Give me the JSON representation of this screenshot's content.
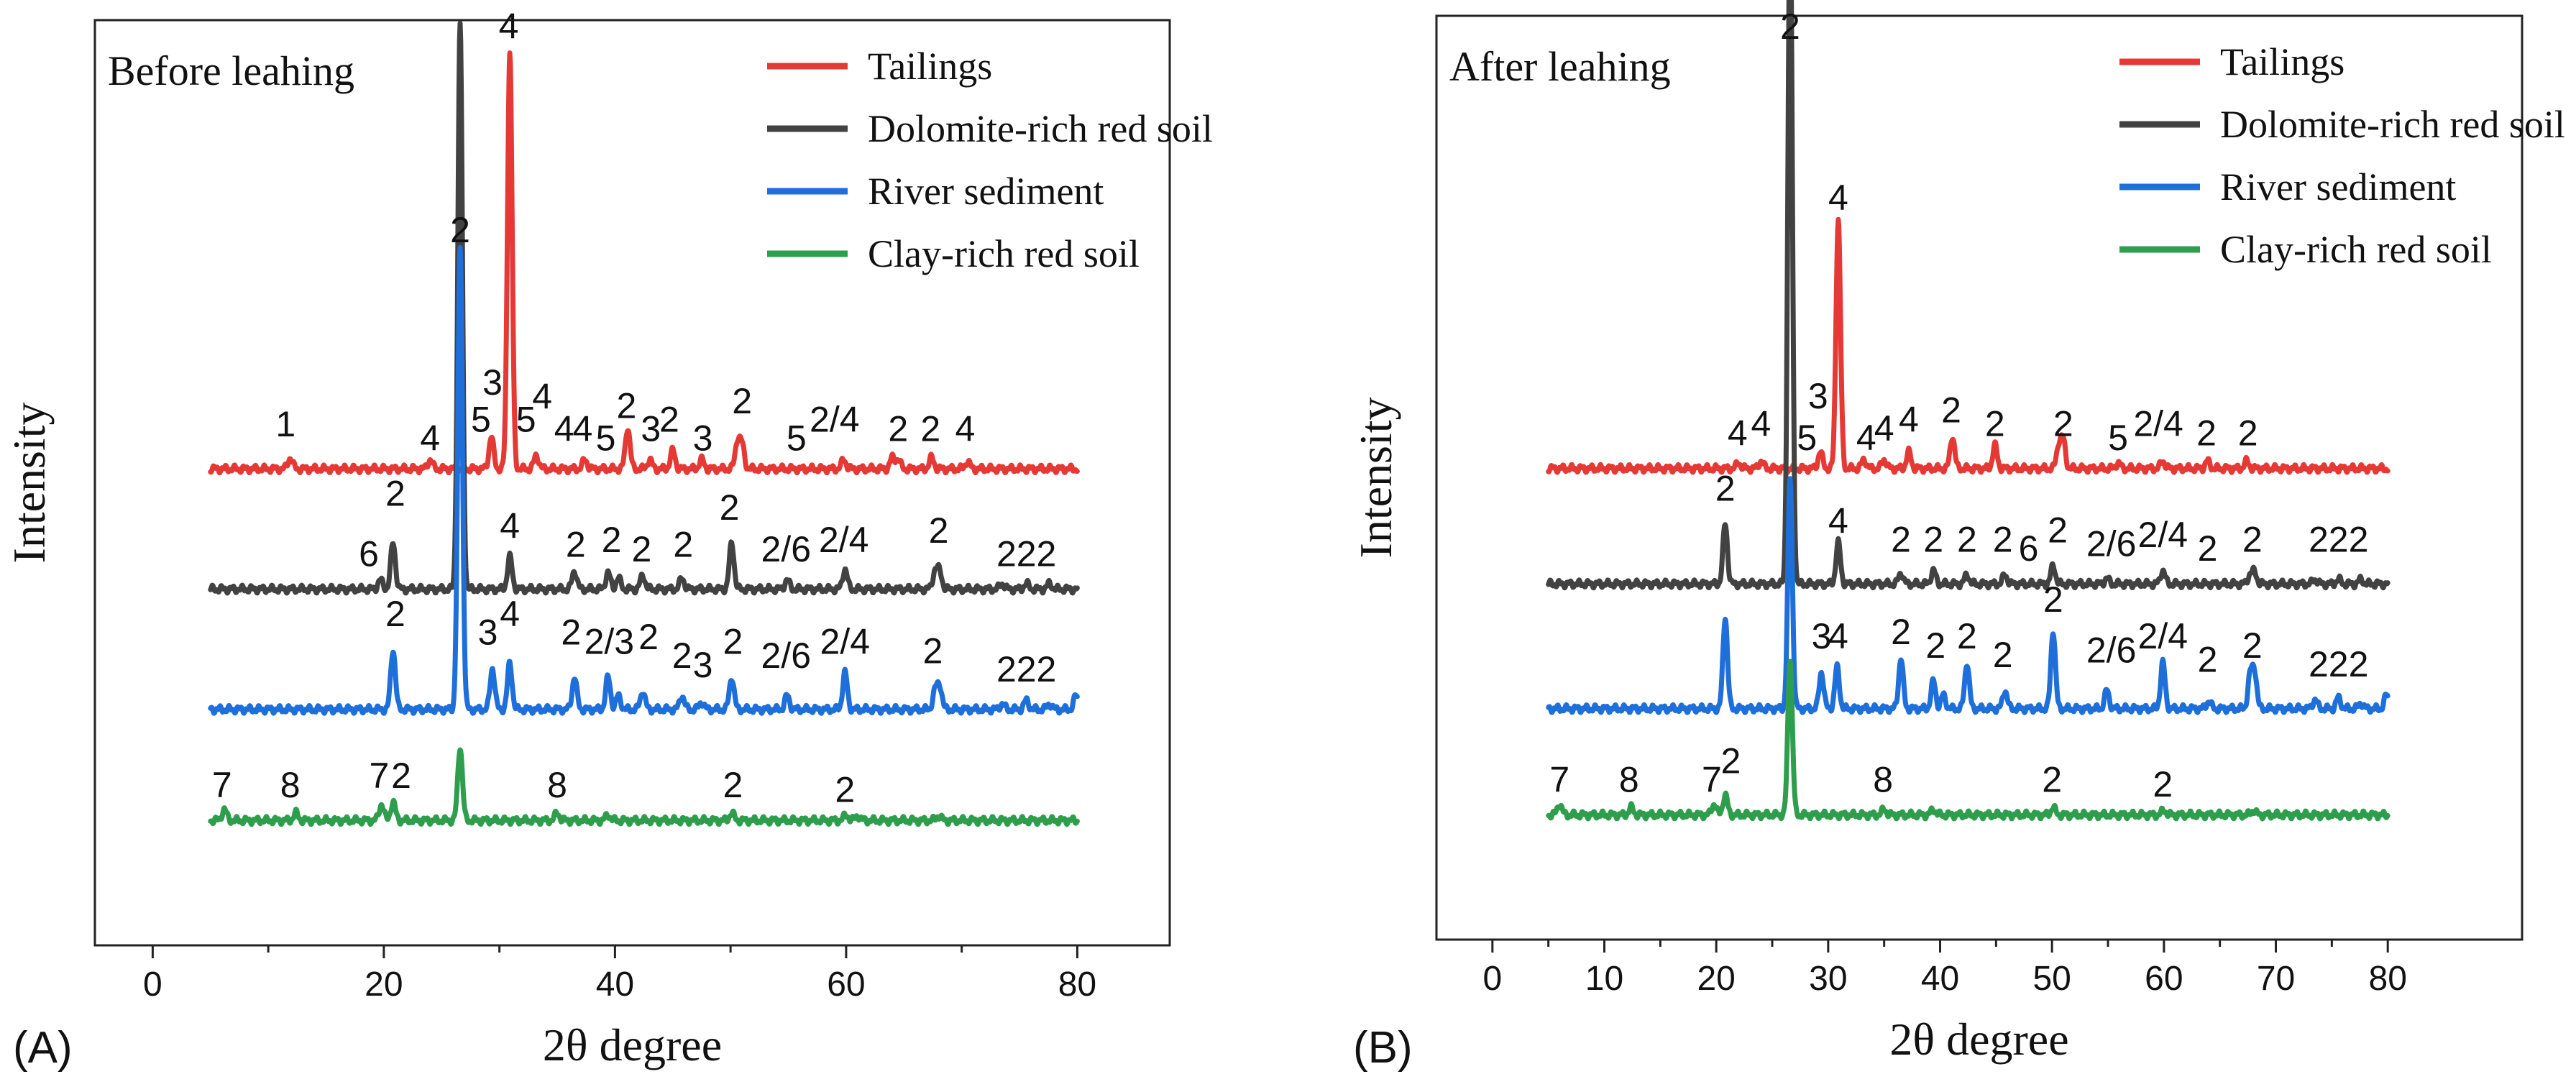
{
  "chart_data": [
    {
      "panel": "(A)",
      "type": "line",
      "title": "Before leahing",
      "xlabel": "2θ degree",
      "ylabel": "Intensity",
      "xlim": [
        -5,
        88
      ],
      "xticks": [
        0,
        20,
        40,
        60,
        80
      ],
      "ylim": [
        0,
        10
      ],
      "yticks_shown": false,
      "grid": false,
      "legend_position": "top-right",
      "series": [
        {
          "name": "Tailings",
          "color": "#e53935",
          "baseline": 5.15,
          "peaks": [
            [
              11.9,
              0.12
            ],
            [
              24.0,
              0.1
            ],
            [
              29.3,
              0.35
            ],
            [
              30.9,
              4.5
            ],
            [
              33.2,
              0.15
            ],
            [
              37.4,
              0.1
            ],
            [
              41.1,
              0.45
            ],
            [
              43.0,
              0.1
            ],
            [
              45.0,
              0.2
            ],
            [
              47.5,
              0.1
            ],
            [
              50.6,
              0.3
            ],
            [
              51.0,
              0.25
            ],
            [
              59.8,
              0.1
            ],
            [
              64.0,
              0.12
            ],
            [
              64.5,
              0.1
            ],
            [
              67.4,
              0.12
            ],
            [
              70.5,
              0.08
            ]
          ]
        },
        {
          "name": "Dolomite-rich red soil",
          "color": "#424242",
          "baseline": 3.85,
          "peaks": [
            [
              19.7,
              0.1
            ],
            [
              20.8,
              0.5
            ],
            [
              26.6,
              6.1
            ],
            [
              30.9,
              0.35
            ],
            [
              36.5,
              0.2
            ],
            [
              39.4,
              0.18
            ],
            [
              40.3,
              0.12
            ],
            [
              42.4,
              0.15
            ],
            [
              45.8,
              0.12
            ],
            [
              50.1,
              0.5
            ],
            [
              54.9,
              0.1
            ],
            [
              59.9,
              0.22
            ],
            [
              67.7,
              0.2
            ],
            [
              68.1,
              0.18
            ],
            [
              73.5,
              0.06
            ],
            [
              75.6,
              0.06
            ],
            [
              77.6,
              0.06
            ]
          ]
        },
        {
          "name": "River sediment",
          "color": "#1e6fd9",
          "baseline": 2.55,
          "peaks": [
            [
              20.8,
              0.65
            ],
            [
              26.6,
              5.0
            ],
            [
              29.4,
              0.45
            ],
            [
              30.9,
              0.5
            ],
            [
              36.5,
              0.35
            ],
            [
              39.4,
              0.35
            ],
            [
              40.3,
              0.15
            ],
            [
              42.4,
              0.2
            ],
            [
              45.8,
              0.15
            ],
            [
              47.5,
              0.08
            ],
            [
              50.1,
              0.35
            ],
            [
              54.9,
              0.15
            ],
            [
              59.9,
              0.4
            ],
            [
              67.7,
              0.2
            ],
            [
              68.1,
              0.25
            ],
            [
              73.5,
              0.06
            ],
            [
              75.6,
              0.1
            ],
            [
              77.6,
              0.06
            ],
            [
              79.9,
              0.15
            ]
          ]
        },
        {
          "name": "Clay-rich red soil",
          "color": "#2e9e4d",
          "baseline": 1.35,
          "peaks": [
            [
              6.2,
              0.12
            ],
            [
              12.4,
              0.08
            ],
            [
              19.8,
              0.18
            ],
            [
              20.8,
              0.2
            ],
            [
              26.6,
              0.8
            ],
            [
              35.0,
              0.08
            ],
            [
              39.4,
              0.06
            ],
            [
              50.1,
              0.08
            ],
            [
              60.0,
              0.06
            ],
            [
              61.0,
              0.05
            ],
            [
              68.0,
              0.05
            ]
          ]
        }
      ],
      "annotations": [
        {
          "text": "1",
          "x": 11.5,
          "y": 5.5
        },
        {
          "text": "4",
          "x": 24.0,
          "y": 5.35
        },
        {
          "text": "5",
          "x": 28.4,
          "y": 5.55
        },
        {
          "text": "3",
          "x": 29.4,
          "y": 5.95
        },
        {
          "text": "4",
          "x": 30.8,
          "y": 9.8
        },
        {
          "text": "5",
          "x": 32.3,
          "y": 5.55
        },
        {
          "text": "4",
          "x": 33.7,
          "y": 5.8
        },
        {
          "text": "4",
          "x": 35.6,
          "y": 5.45
        },
        {
          "text": "4",
          "x": 37.2,
          "y": 5.45
        },
        {
          "text": "5",
          "x": 39.2,
          "y": 5.35
        },
        {
          "text": "2",
          "x": 41.0,
          "y": 5.7
        },
        {
          "text": "3",
          "x": 43.1,
          "y": 5.45
        },
        {
          "text": "2",
          "x": 44.7,
          "y": 5.55
        },
        {
          "text": "3",
          "x": 47.6,
          "y": 5.35
        },
        {
          "text": "2",
          "x": 51.0,
          "y": 5.75
        },
        {
          "text": "5",
          "x": 55.7,
          "y": 5.35
        },
        {
          "text": "2/4",
          "x": 59.0,
          "y": 5.55
        },
        {
          "text": "2",
          "x": 64.5,
          "y": 5.45
        },
        {
          "text": "2",
          "x": 67.3,
          "y": 5.45
        },
        {
          "text": "4",
          "x": 70.3,
          "y": 5.45
        },
        {
          "text": "2",
          "x": 26.6,
          "y": 7.6
        },
        {
          "text": "6",
          "x": 18.7,
          "y": 4.1
        },
        {
          "text": "2",
          "x": 21.0,
          "y": 4.75
        },
        {
          "text": "4",
          "x": 30.9,
          "y": 4.4
        },
        {
          "text": "2",
          "x": 36.6,
          "y": 4.2
        },
        {
          "text": "2",
          "x": 39.7,
          "y": 4.25
        },
        {
          "text": "2",
          "x": 42.3,
          "y": 4.15
        },
        {
          "text": "2",
          "x": 45.9,
          "y": 4.2
        },
        {
          "text": "2",
          "x": 49.9,
          "y": 4.6
        },
        {
          "text": "2/6",
          "x": 54.8,
          "y": 4.15
        },
        {
          "text": "2/4",
          "x": 59.8,
          "y": 4.25
        },
        {
          "text": "2",
          "x": 68.0,
          "y": 4.35
        },
        {
          "text": "222",
          "x": 75.6,
          "y": 4.1
        },
        {
          "text": "2",
          "x": 21.0,
          "y": 3.45
        },
        {
          "text": "3",
          "x": 29.0,
          "y": 3.25
        },
        {
          "text": "4",
          "x": 30.9,
          "y": 3.45
        },
        {
          "text": "2",
          "x": 36.2,
          "y": 3.25
        },
        {
          "text": "2/3",
          "x": 39.5,
          "y": 3.15
        },
        {
          "text": "2",
          "x": 42.9,
          "y": 3.2
        },
        {
          "text": "2",
          "x": 45.8,
          "y": 3.0
        },
        {
          "text": "3",
          "x": 47.6,
          "y": 2.9
        },
        {
          "text": "2",
          "x": 50.2,
          "y": 3.15
        },
        {
          "text": "2/6",
          "x": 54.8,
          "y": 3.0
        },
        {
          "text": "2/4",
          "x": 59.9,
          "y": 3.15
        },
        {
          "text": "2",
          "x": 67.5,
          "y": 3.05
        },
        {
          "text": "222",
          "x": 75.6,
          "y": 2.85
        },
        {
          "text": "7",
          "x": 6.0,
          "y": 1.6
        },
        {
          "text": "8",
          "x": 11.9,
          "y": 1.6
        },
        {
          "text": "7",
          "x": 19.6,
          "y": 1.7
        },
        {
          "text": "2",
          "x": 21.5,
          "y": 1.7
        },
        {
          "text": "8",
          "x": 35.0,
          "y": 1.6
        },
        {
          "text": "2",
          "x": 50.2,
          "y": 1.6
        },
        {
          "text": "2",
          "x": 59.9,
          "y": 1.55
        }
      ]
    },
    {
      "panel": "(B)",
      "type": "line",
      "title": "After leahing",
      "xlabel": "2θ degree",
      "ylabel": "Intensity",
      "xlim": [
        -5,
        92
      ],
      "xticks": [
        0,
        10,
        20,
        30,
        40,
        50,
        60,
        70,
        80
      ],
      "ylim": [
        0,
        10
      ],
      "yticks_shown": false,
      "grid": false,
      "legend_position": "top-right",
      "series": [
        {
          "name": "Tailings",
          "color": "#e53935",
          "baseline": 5.1,
          "peaks": [
            [
              22.0,
              0.06
            ],
            [
              24.0,
              0.08
            ],
            [
              29.3,
              0.18
            ],
            [
              30.9,
              2.7
            ],
            [
              33.2,
              0.1
            ],
            [
              35.0,
              0.1
            ],
            [
              37.2,
              0.18
            ],
            [
              41.1,
              0.35
            ],
            [
              44.9,
              0.25
            ],
            [
              50.6,
              0.25
            ],
            [
              51.0,
              0.3
            ],
            [
              55.9,
              0.06
            ],
            [
              59.9,
              0.08
            ],
            [
              63.9,
              0.08
            ],
            [
              67.4,
              0.08
            ]
          ]
        },
        {
          "name": "Dolomite-rich red soil",
          "color": "#424242",
          "baseline": 3.85,
          "peaks": [
            [
              20.8,
              0.65
            ],
            [
              26.6,
              7.3
            ],
            [
              30.9,
              0.45
            ],
            [
              36.5,
              0.12
            ],
            [
              39.4,
              0.15
            ],
            [
              42.4,
              0.1
            ],
            [
              45.8,
              0.1
            ],
            [
              50.1,
              0.2
            ],
            [
              54.9,
              0.06
            ],
            [
              59.9,
              0.15
            ],
            [
              67.7,
              0.1
            ],
            [
              68.1,
              0.12
            ],
            [
              73.5,
              0.05
            ],
            [
              75.6,
              0.05
            ],
            [
              77.6,
              0.05
            ]
          ]
        },
        {
          "name": "River sediment",
          "color": "#1e6fd9",
          "baseline": 2.5,
          "peaks": [
            [
              20.8,
              1.0
            ],
            [
              26.6,
              2.5
            ],
            [
              29.4,
              0.4
            ],
            [
              30.8,
              0.45
            ],
            [
              36.5,
              0.55
            ],
            [
              39.4,
              0.3
            ],
            [
              40.3,
              0.15
            ],
            [
              42.4,
              0.5
            ],
            [
              45.8,
              0.2
            ],
            [
              50.1,
              0.85
            ],
            [
              54.9,
              0.2
            ],
            [
              59.9,
              0.5
            ],
            [
              64.0,
              0.08
            ],
            [
              67.7,
              0.35
            ],
            [
              68.1,
              0.4
            ],
            [
              73.5,
              0.1
            ],
            [
              75.6,
              0.12
            ],
            [
              77.6,
              0.06
            ],
            [
              79.9,
              0.15
            ]
          ]
        },
        {
          "name": "Clay-rich red soil",
          "color": "#2e9e4d",
          "baseline": 1.35,
          "peaks": [
            [
              6.0,
              0.12
            ],
            [
              12.4,
              0.08
            ],
            [
              19.8,
              0.12
            ],
            [
              20.8,
              0.22
            ],
            [
              26.6,
              1.7
            ],
            [
              35.0,
              0.06
            ],
            [
              39.4,
              0.06
            ],
            [
              50.1,
              0.08
            ],
            [
              60.0,
              0.05
            ],
            [
              68.0,
              0.05
            ]
          ]
        }
      ],
      "annotations": [
        {
          "text": "2",
          "x": 26.6,
          "y": 9.75
        },
        {
          "text": "4",
          "x": 30.9,
          "y": 7.9
        },
        {
          "text": "4",
          "x": 21.9,
          "y": 5.35
        },
        {
          "text": "4",
          "x": 24.0,
          "y": 5.45
        },
        {
          "text": "5",
          "x": 28.1,
          "y": 5.3
        },
        {
          "text": "3",
          "x": 29.1,
          "y": 5.75
        },
        {
          "text": "4",
          "x": 33.4,
          "y": 5.3
        },
        {
          "text": "4",
          "x": 35.0,
          "y": 5.4
        },
        {
          "text": "4",
          "x": 37.2,
          "y": 5.5
        },
        {
          "text": "2",
          "x": 41.0,
          "y": 5.6
        },
        {
          "text": "2",
          "x": 44.9,
          "y": 5.45
        },
        {
          "text": "2",
          "x": 51.0,
          "y": 5.45
        },
        {
          "text": "5",
          "x": 55.9,
          "y": 5.3
        },
        {
          "text": "2/4",
          "x": 59.5,
          "y": 5.45
        },
        {
          "text": "2",
          "x": 63.8,
          "y": 5.35
        },
        {
          "text": "2",
          "x": 67.5,
          "y": 5.35
        },
        {
          "text": "2",
          "x": 20.8,
          "y": 4.75
        },
        {
          "text": "4",
          "x": 30.9,
          "y": 4.4
        },
        {
          "text": "2",
          "x": 36.5,
          "y": 4.2
        },
        {
          "text": "2",
          "x": 39.4,
          "y": 4.2
        },
        {
          "text": "2",
          "x": 42.4,
          "y": 4.2
        },
        {
          "text": "2",
          "x": 45.6,
          "y": 4.2
        },
        {
          "text": "6",
          "x": 47.9,
          "y": 4.1
        },
        {
          "text": "2",
          "x": 50.5,
          "y": 4.3
        },
        {
          "text": "2/6",
          "x": 55.3,
          "y": 4.15
        },
        {
          "text": "2/4",
          "x": 59.9,
          "y": 4.25
        },
        {
          "text": "2",
          "x": 63.9,
          "y": 4.1
        },
        {
          "text": "2",
          "x": 67.9,
          "y": 4.2
        },
        {
          "text": "222",
          "x": 75.6,
          "y": 4.2
        },
        {
          "text": "3",
          "x": 29.4,
          "y": 3.15
        },
        {
          "text": "4",
          "x": 30.9,
          "y": 3.15
        },
        {
          "text": "2",
          "x": 36.5,
          "y": 3.2
        },
        {
          "text": "2",
          "x": 39.6,
          "y": 3.05
        },
        {
          "text": "2",
          "x": 42.4,
          "y": 3.15
        },
        {
          "text": "2",
          "x": 45.6,
          "y": 2.95
        },
        {
          "text": "2",
          "x": 50.1,
          "y": 3.55
        },
        {
          "text": "2/6",
          "x": 55.3,
          "y": 3.0
        },
        {
          "text": "2/4",
          "x": 59.9,
          "y": 3.15
        },
        {
          "text": "2",
          "x": 63.9,
          "y": 2.9
        },
        {
          "text": "2",
          "x": 67.9,
          "y": 3.05
        },
        {
          "text": "222",
          "x": 75.6,
          "y": 2.85
        },
        {
          "text": "7",
          "x": 6.0,
          "y": 1.6
        },
        {
          "text": "8",
          "x": 12.2,
          "y": 1.6
        },
        {
          "text": "7",
          "x": 19.6,
          "y": 1.6
        },
        {
          "text": "2",
          "x": 21.3,
          "y": 1.8
        },
        {
          "text": "8",
          "x": 34.9,
          "y": 1.6
        },
        {
          "text": "2",
          "x": 50.0,
          "y": 1.6
        },
        {
          "text": "2",
          "x": 59.9,
          "y": 1.55
        }
      ]
    }
  ]
}
